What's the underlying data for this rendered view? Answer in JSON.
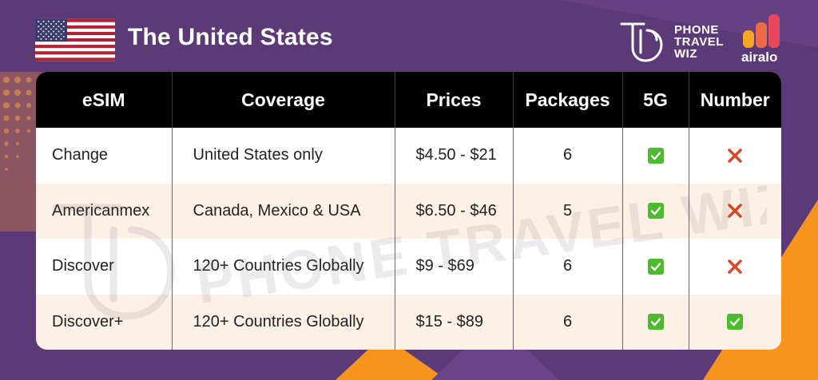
{
  "header": {
    "country_title": "The United States",
    "brand_ptw": [
      "PHONE",
      "TRAVEL",
      "WIZ"
    ],
    "brand_airalo": "airalo"
  },
  "table": {
    "columns": [
      "eSIM",
      "Coverage",
      "Prices",
      "Packages",
      "5G",
      "Number"
    ],
    "rows": [
      {
        "esim": "Change",
        "coverage": "United States only",
        "prices": "$4.50 - $21",
        "packages": "6",
        "g5": "check",
        "number": "cross"
      },
      {
        "esim": "Americanmex",
        "coverage": "Canada, Mexico & USA",
        "prices": "$6.50 - $46",
        "packages": "5",
        "g5": "check",
        "number": "cross"
      },
      {
        "esim": "Discover",
        "coverage": "120+ Countries Globally",
        "prices": "$9 - $69",
        "packages": "6",
        "g5": "check",
        "number": "cross"
      },
      {
        "esim": "Discover+",
        "coverage": "120+ Countries Globally",
        "prices": "$15 - $89",
        "packages": "6",
        "g5": "check",
        "number": "check"
      }
    ]
  },
  "watermark": "PHONE TRAVEL WIZ",
  "colors": {
    "background": "#5c3a78",
    "accent_orange": "#f7941d",
    "check_green": "#4cbb2f",
    "cross_red": "#d9482b",
    "header_black": "#000000",
    "row_alt": "#fdf1e6"
  }
}
